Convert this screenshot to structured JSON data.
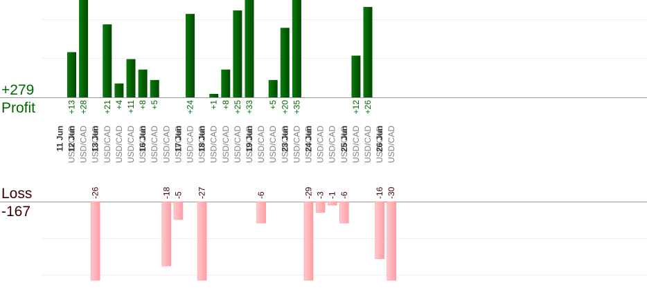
{
  "chart_data": {
    "type": "bar",
    "profit": {
      "label": "Profit",
      "total": "+279",
      "color": "#006600",
      "ylim": [
        0,
        28
      ]
    },
    "loss": {
      "label": "Loss",
      "total": "-167",
      "color": "#ffb6b9",
      "ylim": [
        -22,
        0
      ]
    },
    "columns": [
      {
        "day": "11 Jun",
        "pair": "USD/CAD",
        "value": 13
      },
      {
        "day": "12 Jun",
        "pair": "USD/CAD",
        "value": 28
      },
      {
        "day": "",
        "pair": "USD/CAD",
        "value": -26
      },
      {
        "day": "13 Jun",
        "pair": "USD/CAD",
        "value": 21
      },
      {
        "day": "",
        "pair": "USD/CAD",
        "value": 4
      },
      {
        "day": "",
        "pair": "USD/CAD",
        "value": 11
      },
      {
        "day": "",
        "pair": "USD/CAD",
        "value": 8
      },
      {
        "day": "16 Jun",
        "pair": "USD/CAD",
        "value": 5
      },
      {
        "day": "",
        "pair": "USD/CAD",
        "value": -18
      },
      {
        "day": "",
        "pair": "USD/CAD",
        "value": -5
      },
      {
        "day": "17 Jun",
        "pair": "USD/CAD",
        "value": 24
      },
      {
        "day": "",
        "pair": "USD/CAD",
        "value": -27
      },
      {
        "day": "18 Jun",
        "pair": "USD/CAD",
        "value": 1
      },
      {
        "day": "",
        "pair": "USD/CAD",
        "value": 8
      },
      {
        "day": "",
        "pair": "USD/CAD",
        "value": 25
      },
      {
        "day": "",
        "pair": "USD/CAD",
        "value": 33
      },
      {
        "day": "19 Jun",
        "pair": "USD/CAD",
        "value": -6
      },
      {
        "day": "",
        "pair": "USD/CAD",
        "value": 5
      },
      {
        "day": "",
        "pair": "USD/CAD",
        "value": 20
      },
      {
        "day": "23 Jun",
        "pair": "USD/CAD",
        "value": 35
      },
      {
        "day": "",
        "pair": "USD/CAD",
        "value": -29
      },
      {
        "day": "24 Jun",
        "pair": "USD/CAD",
        "value": -3
      },
      {
        "day": "",
        "pair": "USD/CAD",
        "value": -1
      },
      {
        "day": "",
        "pair": "USD/CAD",
        "value": -6
      },
      {
        "day": "25 Jun",
        "pair": "USD/CAD",
        "value": 12
      },
      {
        "day": "",
        "pair": "USD/CAD",
        "value": 26
      },
      {
        "day": "",
        "pair": "USD/CAD",
        "value": -16
      },
      {
        "day": "26 Jun",
        "pair": "USD/CAD",
        "value": -30
      }
    ]
  }
}
